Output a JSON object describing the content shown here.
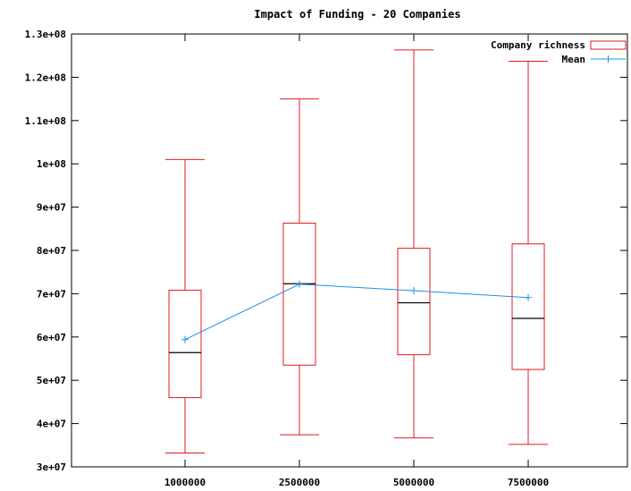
{
  "chart_data": {
    "type": "box",
    "title": "Impact of Funding - 20 Companies",
    "xlabel": "",
    "ylabel": "",
    "categories": [
      "1000000",
      "2500000",
      "5000000",
      "7500000"
    ],
    "x_values": [
      1000000,
      2500000,
      5000000,
      7500000
    ],
    "ylim": [
      30000000,
      130000000
    ],
    "yticks": [
      30000000,
      40000000,
      50000000,
      60000000,
      70000000,
      80000000,
      90000000,
      100000000,
      110000000,
      120000000,
      130000000
    ],
    "ytick_labels": [
      "3e+07",
      "4e+07",
      "5e+07",
      "6e+07",
      "7e+07",
      "8e+07",
      "9e+07",
      "1e+08",
      "1.1e+08",
      "1.2e+08",
      "1.3e+08"
    ],
    "grid": false,
    "legend_position": "top-right",
    "series": [
      {
        "name": "Company richness",
        "kind": "box",
        "color": "#e41a1c",
        "boxes": [
          {
            "category": "1000000",
            "min": 33200000,
            "q1": 46000000,
            "median": 56400000,
            "q3": 70800000,
            "max": 101000000
          },
          {
            "category": "2500000",
            "min": 37400000,
            "q1": 53500000,
            "median": 72300000,
            "q3": 86300000,
            "max": 115000000
          },
          {
            "category": "5000000",
            "min": 36700000,
            "q1": 55900000,
            "median": 67900000,
            "q3": 80500000,
            "max": 126300000
          },
          {
            "category": "7500000",
            "min": 35200000,
            "q1": 52500000,
            "median": 64300000,
            "q3": 81500000,
            "max": 123700000
          }
        ]
      },
      {
        "name": "Mean",
        "kind": "line",
        "color": "#1f8ee8",
        "values": [
          59400000,
          72200000,
          70700000,
          69100000
        ]
      }
    ],
    "median_color": "#000000"
  }
}
